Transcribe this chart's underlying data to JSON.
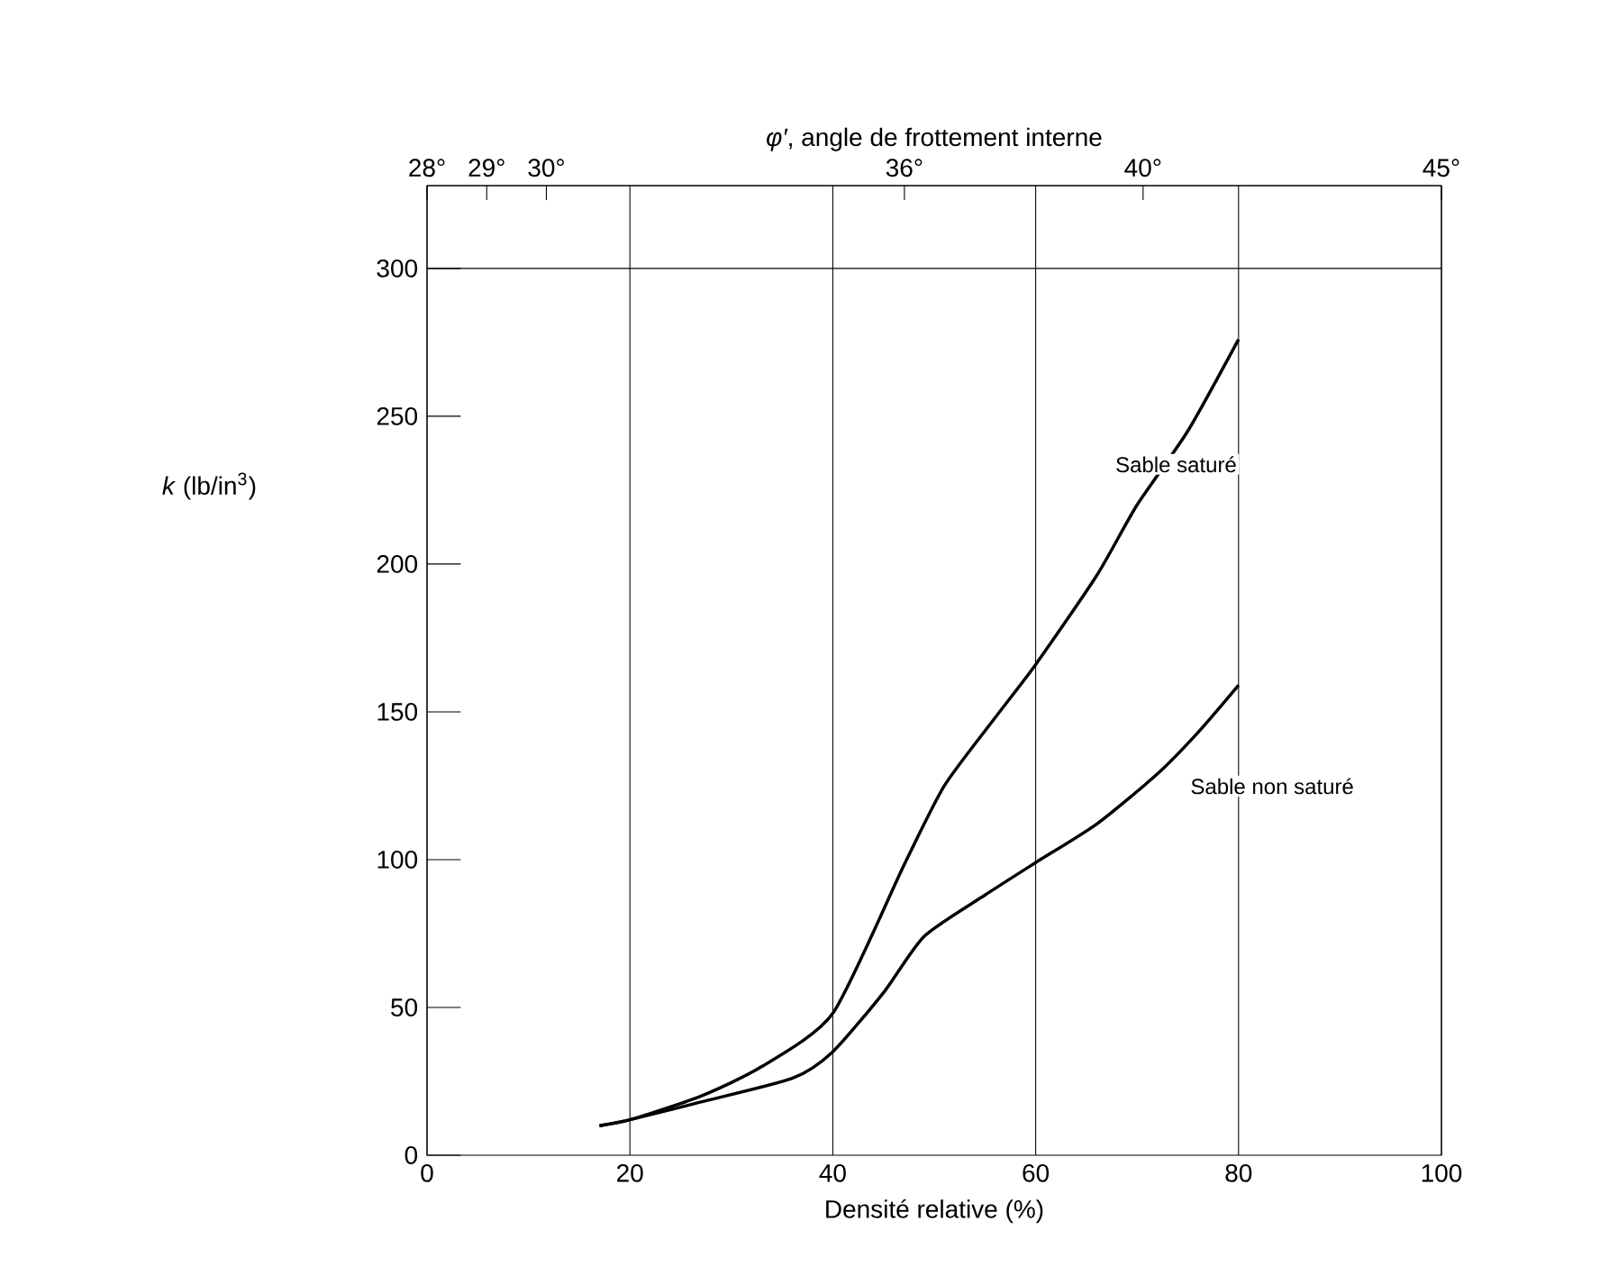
{
  "chart_data": {
    "type": "line",
    "xlabel": "Densité relative (%)",
    "ylabel": "*k* (lb/in$^{3}$)",
    "x2label": "*φ′*, angle de frottement interne",
    "xlim": [
      0,
      100
    ],
    "xticks": [
      0,
      20,
      40,
      60,
      80,
      100
    ],
    "x2lim": [
      28,
      45
    ],
    "x2ticks": [
      {
        "value": 28,
        "label": "28°"
      },
      {
        "value": 29,
        "label": "29°"
      },
      {
        "value": 30,
        "label": "30°"
      },
      {
        "value": 36,
        "label": "36°"
      },
      {
        "value": 40,
        "label": "40°"
      },
      {
        "value": 45,
        "label": "45°"
      }
    ],
    "ylim": [
      0,
      328
    ],
    "yticks": [
      0,
      50,
      100,
      150,
      200,
      250,
      300
    ],
    "grid": "x",
    "legend": false,
    "marker": "none",
    "line_style": "solid",
    "ref_lines": [
      {
        "axis": "y",
        "value": 300,
        "color": "#000000"
      }
    ],
    "series": [
      {
        "name": "Sable saturé",
        "color": "#000000",
        "x": [
          17,
          20,
          27,
          33,
          40,
          47,
          51,
          56,
          60,
          66,
          70,
          75,
          80
        ],
        "values": [
          10,
          12,
          20,
          30,
          48,
          98,
          125,
          148,
          166,
          196,
          220,
          245,
          276
        ]
      },
      {
        "name": "Sable non saturé",
        "color": "#000000",
        "x": [
          17,
          20,
          27,
          36,
          40,
          45,
          49,
          55,
          60,
          66,
          72,
          76,
          80
        ],
        "values": [
          10,
          12,
          18,
          26,
          35,
          55,
          74,
          88,
          99,
          112,
          129,
          143,
          159
        ]
      }
    ]
  }
}
